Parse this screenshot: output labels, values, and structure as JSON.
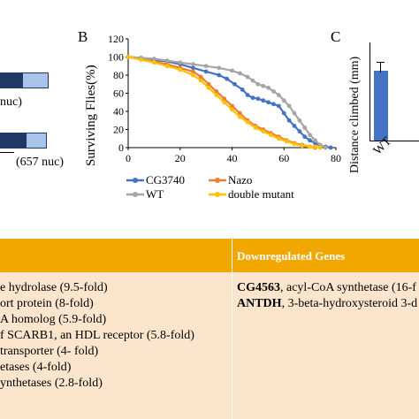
{
  "panelA": {
    "label1": "nuc)",
    "label2": "(657 nuc)",
    "colors": {
      "dark": "#1f3864",
      "light": "#a9c4eb",
      "outline": "#1f3864"
    }
  },
  "panelB": {
    "letter": "B",
    "chart_data": {
      "type": "line",
      "xlabel": "",
      "ylabel": "Surviving Flies(%)",
      "xlim": [
        0,
        80
      ],
      "ylim": [
        0,
        120
      ],
      "xticks": [
        "0",
        "20",
        "40",
        "60",
        "80"
      ],
      "yticks": [
        "0",
        "20",
        "40",
        "60",
        "80",
        "100",
        "120"
      ],
      "legend_position": "bottom",
      "series": [
        {
          "name": "CG3740",
          "color": "#4472c4",
          "x": [
            0,
            5,
            10,
            15,
            20,
            25,
            30,
            35,
            38,
            41,
            44,
            46,
            48,
            50,
            52,
            54,
            56,
            58,
            60,
            62,
            64,
            66,
            68,
            70,
            72,
            74,
            76,
            78
          ],
          "y": [
            100,
            99,
            97,
            95,
            92,
            88,
            84,
            80,
            76,
            70,
            64,
            58,
            55,
            54,
            52,
            50,
            48,
            46,
            38,
            30,
            24,
            18,
            12,
            8,
            5,
            2,
            1,
            0
          ]
        },
        {
          "name": "Nazo",
          "color": "#ed7d31",
          "x": [
            0,
            5,
            10,
            15,
            20,
            25,
            28,
            31,
            34,
            37,
            40,
            43,
            46,
            49,
            52,
            55,
            58,
            61,
            64,
            67,
            70,
            72
          ],
          "y": [
            100,
            98,
            95,
            92,
            88,
            84,
            78,
            70,
            62,
            54,
            46,
            38,
            30,
            24,
            20,
            16,
            12,
            8,
            5,
            3,
            1,
            0
          ]
        },
        {
          "name": "WT",
          "color": "#a5a5a5",
          "x": [
            0,
            5,
            10,
            15,
            20,
            25,
            30,
            35,
            40,
            43,
            46,
            48,
            50,
            52,
            54,
            56,
            58,
            60,
            62,
            64,
            66,
            68,
            70,
            72,
            74,
            76
          ],
          "y": [
            100,
            99,
            98,
            96,
            94,
            92,
            90,
            88,
            85,
            82,
            78,
            74,
            70,
            68,
            66,
            62,
            58,
            52,
            46,
            38,
            30,
            22,
            14,
            8,
            3,
            0
          ]
        },
        {
          "name": "double mutant",
          "color": "#ffc000",
          "x": [
            0,
            5,
            10,
            15,
            20,
            25,
            28,
            31,
            34,
            37,
            40,
            43,
            46,
            49,
            52,
            55,
            58,
            61,
            64,
            67,
            70,
            72,
            74
          ],
          "y": [
            100,
            97,
            94,
            90,
            86,
            80,
            74,
            66,
            58,
            50,
            42,
            34,
            28,
            22,
            18,
            14,
            10,
            7,
            4,
            2,
            1,
            1,
            0
          ]
        }
      ]
    }
  },
  "panelC": {
    "letter": "C",
    "ylabel": "Distance climbed (mm)",
    "category": "WT",
    "bar_color": "#4472c4"
  },
  "table": {
    "header_right": "Downregulated Genes",
    "left_rows": [
      "e hydrolase (9.5-fold)",
      "ort protein (8-fold)",
      "A homolog (5.9-fold)",
      "f SCARB1, an HDL receptor (5.8-fold)",
      "transporter (4- fold)",
      "etases (4-fold)",
      "ynthetases (2.8-fold)"
    ],
    "right_rows": [
      {
        "bold": "CG4563",
        "rest": ", acyl-CoA synthetase (16-f"
      },
      {
        "bold": "ANTDH",
        "rest": ", 3-beta-hydroxysteroid 3-d"
      }
    ],
    "colors": {
      "header": "#f0a800",
      "body": "#fbe5cc"
    }
  }
}
